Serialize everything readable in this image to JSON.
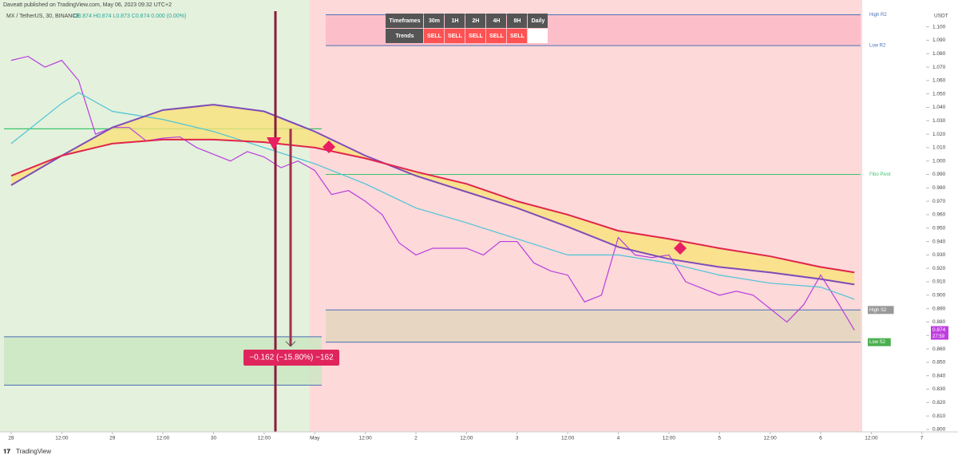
{
  "header": {
    "publisher": "Daveatt published on TradingView.com, May 06, 2023 09:32 UTC+2",
    "symbol": "MX / TetherUS, 30, BINANCE",
    "ohlc": "O0.874 H0.874 L0.873 C0.874 0.000 (0.00%)",
    "footer": "TradingView"
  },
  "trend_table": {
    "header": [
      "Timeframes",
      "30m",
      "1H",
      "2H",
      "4H",
      "8H",
      "Daily"
    ],
    "row": [
      "Trends",
      "SELL",
      "SELL",
      "SELL",
      "SELL",
      "SELL",
      null
    ]
  },
  "chart_data": {
    "type": "line",
    "xlim": [
      -2.65,
      217
    ],
    "ylim": [
      0.794,
      1.12
    ],
    "xticks": [
      {
        "value": 0,
        "label": "28"
      },
      {
        "value": 12,
        "label": "12:00"
      },
      {
        "value": 24,
        "label": "29"
      },
      {
        "value": 36,
        "label": "12:00"
      },
      {
        "value": 48,
        "label": "30"
      },
      {
        "value": 60,
        "label": "12:00"
      },
      {
        "value": 72,
        "label": "May"
      },
      {
        "value": 84,
        "label": "12:00"
      },
      {
        "value": 96,
        "label": "2"
      },
      {
        "value": 108,
        "label": "12:00"
      },
      {
        "value": 120,
        "label": "3"
      },
      {
        "value": 132,
        "label": "12:00"
      },
      {
        "value": 144,
        "label": "4"
      },
      {
        "value": 156,
        "label": "12:00"
      },
      {
        "value": 168,
        "label": "5"
      },
      {
        "value": 180,
        "label": "12:00"
      },
      {
        "value": 192,
        "label": "6"
      },
      {
        "value": 204,
        "label": "12:00"
      },
      {
        "value": 216,
        "label": "7"
      }
    ],
    "yticks": [
      {
        "value": 1.1,
        "label": "1.100"
      },
      {
        "value": 1.09,
        "label": "1.090"
      },
      {
        "value": 1.08,
        "label": "1.080"
      },
      {
        "value": 1.07,
        "label": "1.070"
      },
      {
        "value": 1.06,
        "label": "1.060"
      },
      {
        "value": 1.05,
        "label": "1.050"
      },
      {
        "value": 1.04,
        "label": "1.040"
      },
      {
        "value": 1.03,
        "label": "1.030"
      },
      {
        "value": 1.02,
        "label": "1.020"
      },
      {
        "value": 1.01,
        "label": "1.010"
      },
      {
        "value": 1.0,
        "label": "1.000"
      },
      {
        "value": 0.99,
        "label": "0.990"
      },
      {
        "value": 0.98,
        "label": "0.980"
      },
      {
        "value": 0.97,
        "label": "0.970"
      },
      {
        "value": 0.96,
        "label": "0.960"
      },
      {
        "value": 0.95,
        "label": "0.950"
      },
      {
        "value": 0.94,
        "label": "0.940"
      },
      {
        "value": 0.93,
        "label": "0.930"
      },
      {
        "value": 0.92,
        "label": "0.920"
      },
      {
        "value": 0.91,
        "label": "0.910"
      },
      {
        "value": 0.9,
        "label": "0.900"
      },
      {
        "value": 0.89,
        "label": "0.890"
      },
      {
        "value": 0.88,
        "label": "0.880"
      },
      {
        "value": 0.87,
        "label": "0.870"
      },
      {
        "value": 0.86,
        "label": "0.860"
      },
      {
        "value": 0.85,
        "label": "0.850"
      },
      {
        "value": 0.84,
        "label": "0.840"
      },
      {
        "value": 0.83,
        "label": "0.830"
      },
      {
        "value": 0.82,
        "label": "0.820"
      },
      {
        "value": 0.81,
        "label": "0.810"
      },
      {
        "value": 0.8,
        "label": "0.800"
      }
    ],
    "y_unit": "USDT",
    "series": [
      {
        "color": "#b83ee0",
        "x": [
          0,
          4,
          8,
          12,
          16,
          20,
          24,
          28,
          32,
          36,
          40,
          44,
          48,
          52,
          56,
          60,
          64,
          68,
          72,
          76,
          80,
          84,
          88,
          92,
          96,
          100,
          104,
          108,
          112,
          116,
          120,
          124,
          128,
          132,
          136,
          140,
          144,
          148,
          152,
          156,
          160,
          164,
          168,
          172,
          176,
          180,
          184,
          188,
          192,
          196,
          200
        ],
        "values": [
          1.075,
          1.078,
          1.07,
          1.075,
          1.06,
          1.02,
          1.025,
          1.025,
          1.015,
          1.017,
          1.018,
          1.01,
          1.005,
          1.0,
          1.007,
          1.003,
          0.995,
          1.0,
          0.993,
          0.975,
          0.978,
          0.97,
          0.96,
          0.939,
          0.93,
          0.935,
          0.935,
          0.935,
          0.93,
          0.94,
          0.94,
          0.924,
          0.918,
          0.915,
          0.895,
          0.9,
          0.943,
          0.93,
          0.928,
          0.93,
          0.91,
          0.905,
          0.9,
          0.903,
          0.9,
          0.89,
          0.88,
          0.893,
          0.915,
          0.895,
          0.874
        ]
      },
      {
        "color": "#4cc4d8",
        "x": [
          0,
          12,
          16,
          24,
          36,
          48,
          60,
          72,
          84,
          96,
          108,
          120,
          132,
          144,
          156,
          168,
          180,
          192,
          200
        ],
        "values": [
          1.013,
          1.043,
          1.051,
          1.037,
          1.031,
          1.022,
          1.01,
          0.998,
          0.983,
          0.965,
          0.954,
          0.942,
          0.93,
          0.93,
          0.924,
          0.915,
          0.909,
          0.906,
          0.897
        ]
      },
      {
        "color": "#7e4cb8",
        "x": [
          0,
          12,
          24,
          36,
          48,
          60,
          72,
          84,
          96,
          108,
          120,
          132,
          144,
          156,
          168,
          180,
          192,
          200
        ],
        "values": [
          0.982,
          1.004,
          1.025,
          1.038,
          1.042,
          1.037,
          1.022,
          1.004,
          0.989,
          0.977,
          0.965,
          0.951,
          0.936,
          0.927,
          0.921,
          0.917,
          0.912,
          0.908
        ]
      },
      {
        "color": "#e0244c",
        "x": [
          0,
          12,
          24,
          36,
          48,
          60,
          72,
          84,
          96,
          108,
          120,
          132,
          144,
          156,
          168,
          180,
          192,
          200
        ],
        "values": [
          0.989,
          1.004,
          1.013,
          1.016,
          1.016,
          1.014,
          1.01,
          1.002,
          0.992,
          0.983,
          0.97,
          0.96,
          0.948,
          0.942,
          0.935,
          0.929,
          0.921,
          0.917
        ]
      }
    ],
    "levels": [
      {
        "label": "High R2",
        "value": 1.109,
        "color": "#4b6fb5"
      },
      {
        "label": "Low R2",
        "value": 1.086,
        "color": "#4b6fb5"
      },
      {
        "label": "Fibo Pivot",
        "value": 0.99,
        "color": "#3cc46c"
      },
      {
        "label": "High S2",
        "value": 0.889,
        "color": "#4b6fb5"
      },
      {
        "label": "Low S2",
        "value": 0.865,
        "color": "#4b6fb5"
      }
    ],
    "pivot_line": 1.024,
    "range_box": [
      0.869,
      0.833
    ],
    "measure": {
      "label": "−0.162 (−15.80%) −162",
      "from": 1.024,
      "to": 0.862
    },
    "last_price": {
      "value": 0.874,
      "countdown": "27:59"
    }
  }
}
